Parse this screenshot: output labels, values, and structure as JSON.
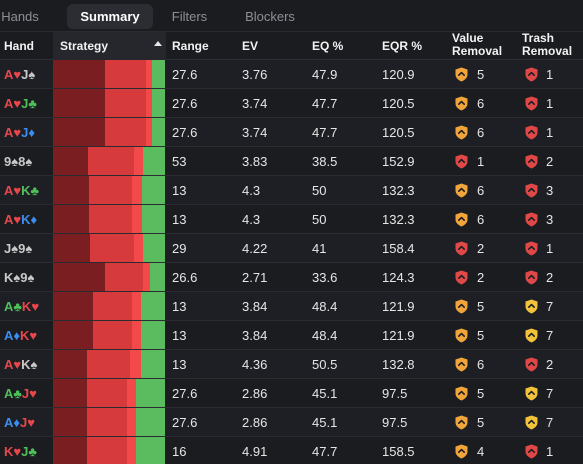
{
  "tabs": [
    {
      "label": "Hands",
      "active": false
    },
    {
      "label": "Summary",
      "active": true
    },
    {
      "label": "Filters",
      "active": false
    },
    {
      "label": "Blockers",
      "active": false
    }
  ],
  "columns": {
    "hand": "Hand",
    "strategy": "Strategy",
    "range": "Range",
    "ev": "EV",
    "eq": "EQ %",
    "eqr": "EQR %",
    "value_removal_1": "Value",
    "value_removal_2": "Removal",
    "trash_removal_1": "Trash",
    "trash_removal_2": "Removal"
  },
  "colors": {
    "suit_hearts": "#e8474c",
    "suit_clubs": "#4fbf5a",
    "suit_diamonds": "#3a8ef0",
    "suit_spades": "#c9c9c9",
    "strategy_dark": "#7b1e22",
    "strategy_mid": "#d63a3d",
    "strategy_light": "#f24a4a",
    "strategy_green": "#5bbb5f",
    "shield_orange": "#f0a43a",
    "shield_red": "#e04848",
    "shield_yellow": "#f2c23b"
  },
  "rows": [
    {
      "cards": [
        {
          "rank": "A",
          "suit": "♥",
          "color": "#e8474c"
        },
        {
          "rank": "J",
          "suit": "♠",
          "color": "#c9c9c9"
        }
      ],
      "strategy": [
        0.46,
        0.37,
        0.05,
        0.12
      ],
      "range": "27.6",
      "ev": "3.76",
      "eq": "47.9",
      "eqr": "120.9",
      "vr": "5",
      "vr_color": "#f0a43a",
      "tr": "1",
      "tr_color": "#e04848"
    },
    {
      "cards": [
        {
          "rank": "A",
          "suit": "♥",
          "color": "#e8474c"
        },
        {
          "rank": "J",
          "suit": "♣",
          "color": "#4fbf5a"
        }
      ],
      "strategy": [
        0.46,
        0.37,
        0.05,
        0.12
      ],
      "range": "27.6",
      "ev": "3.74",
      "eq": "47.7",
      "eqr": "120.5",
      "vr": "6",
      "vr_color": "#f0a43a",
      "tr": "1",
      "tr_color": "#e04848"
    },
    {
      "cards": [
        {
          "rank": "A",
          "suit": "♥",
          "color": "#e8474c"
        },
        {
          "rank": "J",
          "suit": "♦",
          "color": "#3a8ef0"
        }
      ],
      "strategy": [
        0.46,
        0.37,
        0.05,
        0.12
      ],
      "range": "27.6",
      "ev": "3.74",
      "eq": "47.7",
      "eqr": "120.5",
      "vr": "6",
      "vr_color": "#f0a43a",
      "tr": "1",
      "tr_color": "#e04848"
    },
    {
      "cards": [
        {
          "rank": "9",
          "suit": "♠",
          "color": "#c9c9c9"
        },
        {
          "rank": "8",
          "suit": "♠",
          "color": "#c9c9c9"
        }
      ],
      "strategy": [
        0.31,
        0.41,
        0.08,
        0.2
      ],
      "range": "53",
      "ev": "3.83",
      "eq": "38.5",
      "eqr": "152.9",
      "vr": "1",
      "vr_color": "#e04848",
      "tr": "2",
      "tr_color": "#e04848"
    },
    {
      "cards": [
        {
          "rank": "A",
          "suit": "♥",
          "color": "#e8474c"
        },
        {
          "rank": "K",
          "suit": "♣",
          "color": "#4fbf5a"
        }
      ],
      "strategy": [
        0.32,
        0.38,
        0.09,
        0.21
      ],
      "range": "13",
      "ev": "4.3",
      "eq": "50",
      "eqr": "132.3",
      "vr": "6",
      "vr_color": "#f0a43a",
      "tr": "3",
      "tr_color": "#e04848"
    },
    {
      "cards": [
        {
          "rank": "A",
          "suit": "♥",
          "color": "#e8474c"
        },
        {
          "rank": "K",
          "suit": "♦",
          "color": "#3a8ef0"
        }
      ],
      "strategy": [
        0.32,
        0.38,
        0.09,
        0.21
      ],
      "range": "13",
      "ev": "4.3",
      "eq": "50",
      "eqr": "132.3",
      "vr": "6",
      "vr_color": "#f0a43a",
      "tr": "3",
      "tr_color": "#e04848"
    },
    {
      "cards": [
        {
          "rank": "J",
          "suit": "♠",
          "color": "#c9c9c9"
        },
        {
          "rank": "9",
          "suit": "♠",
          "color": "#c9c9c9"
        }
      ],
      "strategy": [
        0.33,
        0.39,
        0.08,
        0.2
      ],
      "range": "29",
      "ev": "4.22",
      "eq": "41",
      "eqr": "158.4",
      "vr": "2",
      "vr_color": "#e04848",
      "tr": "1",
      "tr_color": "#e04848"
    },
    {
      "cards": [
        {
          "rank": "K",
          "suit": "♠",
          "color": "#c9c9c9"
        },
        {
          "rank": "9",
          "suit": "♠",
          "color": "#c9c9c9"
        }
      ],
      "strategy": [
        0.46,
        0.34,
        0.06,
        0.14
      ],
      "range": "26.6",
      "ev": "2.71",
      "eq": "33.6",
      "eqr": "124.3",
      "vr": "2",
      "vr_color": "#e04848",
      "tr": "2",
      "tr_color": "#e04848"
    },
    {
      "cards": [
        {
          "rank": "A",
          "suit": "♣",
          "color": "#4fbf5a"
        },
        {
          "rank": "K",
          "suit": "♥",
          "color": "#e8474c"
        }
      ],
      "strategy": [
        0.36,
        0.35,
        0.08,
        0.21
      ],
      "range": "13",
      "ev": "3.84",
      "eq": "48.4",
      "eqr": "121.9",
      "vr": "5",
      "vr_color": "#f0a43a",
      "tr": "7",
      "tr_color": "#f2c23b"
    },
    {
      "cards": [
        {
          "rank": "A",
          "suit": "♦",
          "color": "#3a8ef0"
        },
        {
          "rank": "K",
          "suit": "♥",
          "color": "#e8474c"
        }
      ],
      "strategy": [
        0.36,
        0.35,
        0.08,
        0.21
      ],
      "range": "13",
      "ev": "3.84",
      "eq": "48.4",
      "eqr": "121.9",
      "vr": "5",
      "vr_color": "#f0a43a",
      "tr": "7",
      "tr_color": "#f2c23b"
    },
    {
      "cards": [
        {
          "rank": "A",
          "suit": "♥",
          "color": "#e8474c"
        },
        {
          "rank": "K",
          "suit": "♠",
          "color": "#c9c9c9"
        }
      ],
      "strategy": [
        0.3,
        0.38,
        0.1,
        0.22
      ],
      "range": "13",
      "ev": "4.36",
      "eq": "50.5",
      "eqr": "132.8",
      "vr": "6",
      "vr_color": "#f0a43a",
      "tr": "2",
      "tr_color": "#e04848"
    },
    {
      "cards": [
        {
          "rank": "A",
          "suit": "♣",
          "color": "#4fbf5a"
        },
        {
          "rank": "J",
          "suit": "♥",
          "color": "#e8474c"
        }
      ],
      "strategy": [
        0.3,
        0.36,
        0.08,
        0.26
      ],
      "range": "27.6",
      "ev": "2.86",
      "eq": "45.1",
      "eqr": "97.5",
      "vr": "5",
      "vr_color": "#f0a43a",
      "tr": "7",
      "tr_color": "#f2c23b"
    },
    {
      "cards": [
        {
          "rank": "A",
          "suit": "♦",
          "color": "#3a8ef0"
        },
        {
          "rank": "J",
          "suit": "♥",
          "color": "#e8474c"
        }
      ],
      "strategy": [
        0.3,
        0.36,
        0.08,
        0.26
      ],
      "range": "27.6",
      "ev": "2.86",
      "eq": "45.1",
      "eqr": "97.5",
      "vr": "5",
      "vr_color": "#f0a43a",
      "tr": "7",
      "tr_color": "#f2c23b"
    },
    {
      "cards": [
        {
          "rank": "K",
          "suit": "♥",
          "color": "#e8474c"
        },
        {
          "rank": "J",
          "suit": "♣",
          "color": "#4fbf5a"
        }
      ],
      "strategy": [
        0.3,
        0.36,
        0.08,
        0.26
      ],
      "range": "16",
      "ev": "4.91",
      "eq": "47.7",
      "eqr": "158.5",
      "vr": "4",
      "vr_color": "#f0a43a",
      "tr": "1",
      "tr_color": "#e04848"
    }
  ]
}
